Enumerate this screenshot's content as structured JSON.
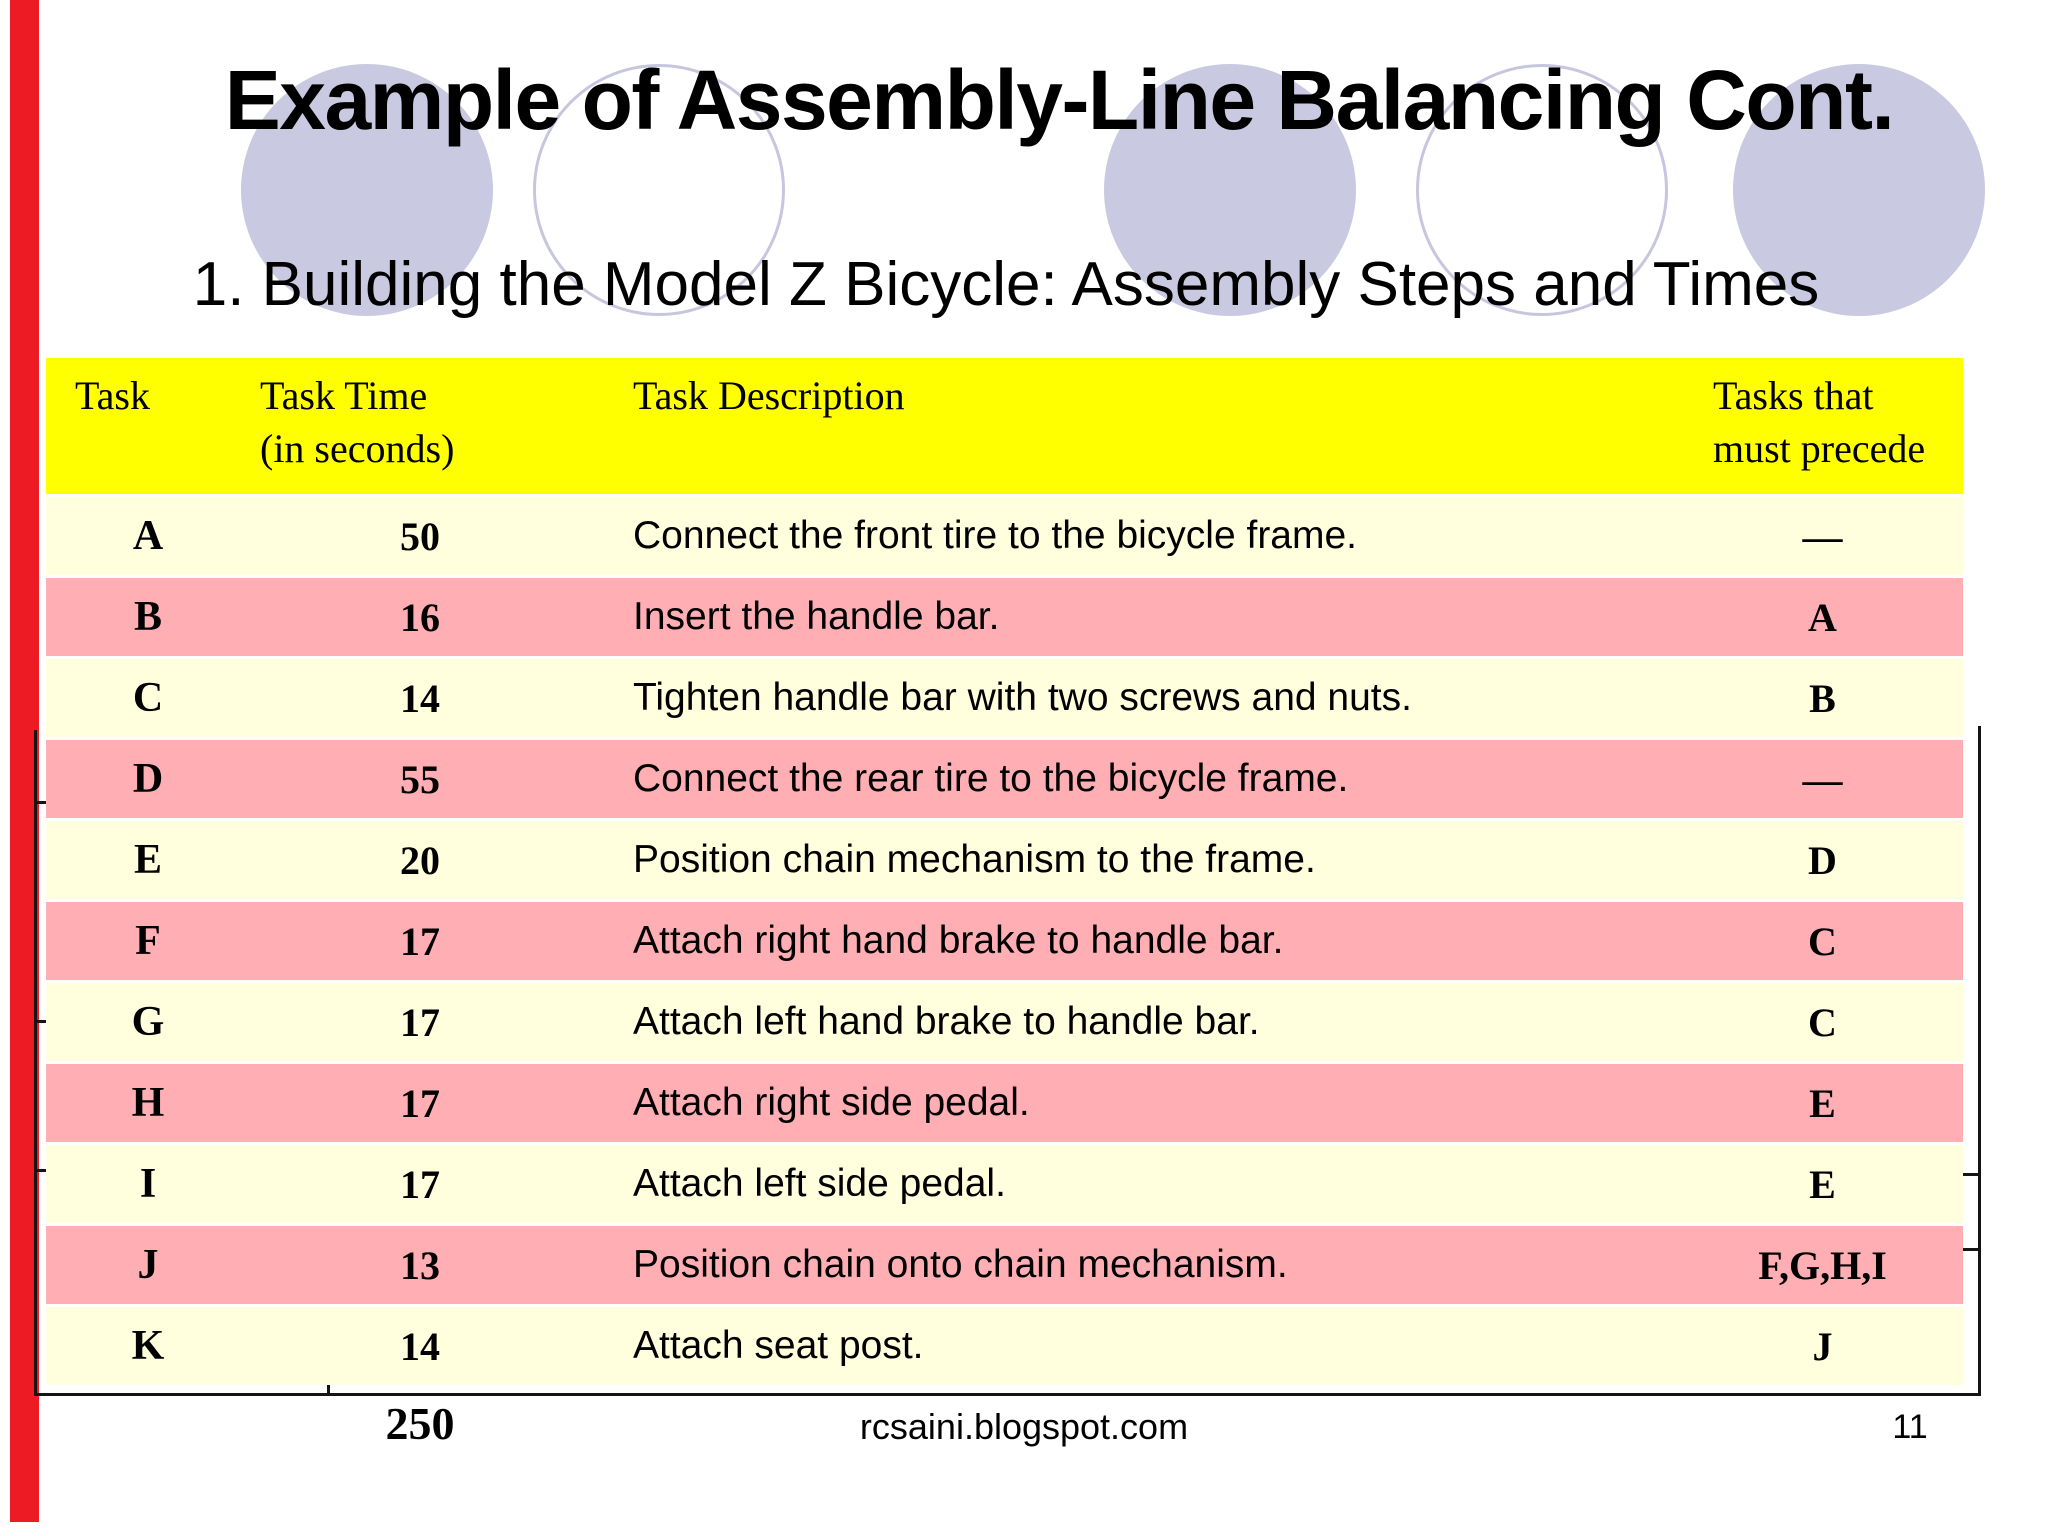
{
  "slide": {
    "title": "Example of Assembly-Line Balancing Cont.",
    "subtitle": "1. Building the Model Z Bicycle: Assembly Steps and Times",
    "footer": {
      "column_total": "250",
      "source": "rcsaini.blogspot.com",
      "page_number": "11"
    }
  },
  "table": {
    "headers": {
      "task": "Task",
      "time_line1": "Task Time",
      "time_line2": "(in seconds)",
      "description": "Task Description",
      "precede_line1": "Tasks that",
      "precede_line2": "must precede"
    },
    "rows": [
      {
        "task": "A",
        "time": "50",
        "description": "Connect the front tire to the bicycle frame.",
        "precede": "—"
      },
      {
        "task": "B",
        "time": "16",
        "description": "Insert the handle bar.",
        "precede": "A"
      },
      {
        "task": "C",
        "time": "14",
        "description": "Tighten handle bar with two screws and nuts.",
        "precede": "B"
      },
      {
        "task": "D",
        "time": "55",
        "description": "Connect the rear tire to the bicycle frame.",
        "precede": "—"
      },
      {
        "task": "E",
        "time": "20",
        "description": "Position chain mechanism to the frame.",
        "precede": "D"
      },
      {
        "task": "F",
        "time": "17",
        "description": "Attach right hand brake to handle bar.",
        "precede": "C"
      },
      {
        "task": "G",
        "time": "17",
        "description": "Attach left hand brake to handle bar.",
        "precede": "C"
      },
      {
        "task": "H",
        "time": "17",
        "description": "Attach right side pedal.",
        "precede": "E"
      },
      {
        "task": "I",
        "time": "17",
        "description": "Attach left side pedal.",
        "precede": "E"
      },
      {
        "task": "J",
        "time": "13",
        "description": "Position chain onto chain mechanism.",
        "precede": "F,G,H,I"
      },
      {
        "task": "K",
        "time": "14",
        "description": "Attach seat post.",
        "precede": "J"
      }
    ]
  },
  "colors": {
    "header_bg": "#FFFF00",
    "row_cream": "#FFFFDE",
    "row_pink": "#FFAEB4",
    "circle_fill": "#C9C9E1",
    "circle_stroke": "#C6C6DF",
    "accent_red": "#ED1C24",
    "line_black": "#141414"
  }
}
